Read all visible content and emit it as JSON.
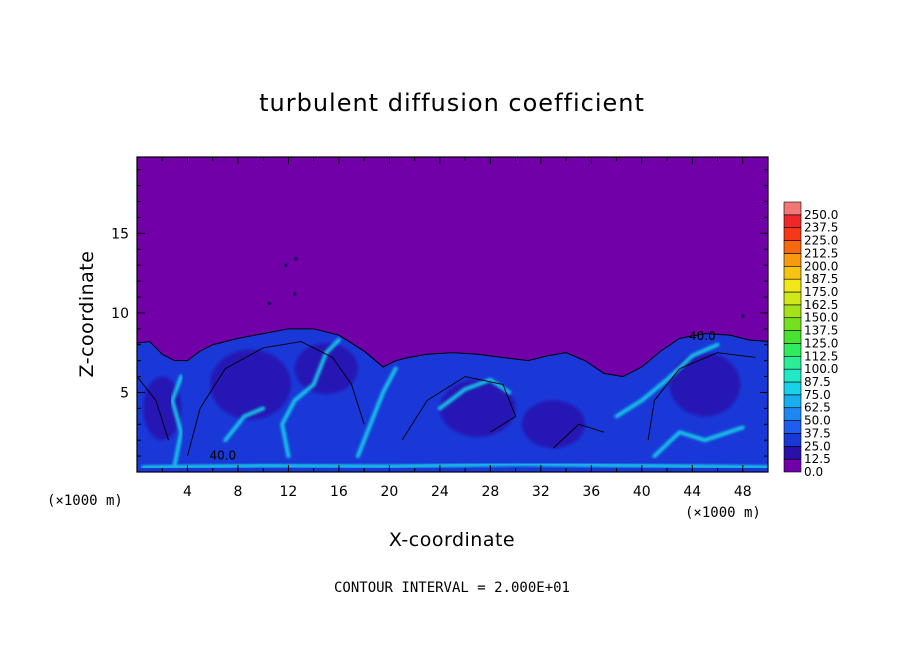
{
  "chart_data": {
    "type": "heatmap",
    "title": "turbulent diffusion coefficient",
    "xlabel": "X-coordinate",
    "ylabel": "Z-coordinate",
    "x_unit_left": "(×1000 m)",
    "x_unit_right": "(×1000 m)",
    "xlim": [
      0,
      50
    ],
    "ylim": [
      0,
      19.8
    ],
    "x_ticks": [
      4,
      8,
      12,
      16,
      20,
      24,
      28,
      32,
      36,
      40,
      44,
      48
    ],
    "y_ticks": [
      5,
      10,
      15
    ],
    "colorbar_levels": [
      "0.0",
      "12.5",
      "25.0",
      "37.5",
      "50.0",
      "62.5",
      "75.0",
      "87.5",
      "100.0",
      "112.5",
      "125.0",
      "137.5",
      "150.0",
      "162.5",
      "175.0",
      "187.5",
      "200.0",
      "212.5",
      "225.0",
      "237.5",
      "250.0"
    ],
    "colorbar_colors": [
      "#7200a8",
      "#2a10a8",
      "#1a38d8",
      "#1f5cf0",
      "#1e86f2",
      "#18aef0",
      "#18d2e8",
      "#22e8c8",
      "#28ee98",
      "#30ea60",
      "#48e230",
      "#74e020",
      "#a6e21c",
      "#d0e81a",
      "#f0e818",
      "#f8c414",
      "#f89a10",
      "#f86810",
      "#f43818",
      "#ee2828",
      "#f27878"
    ],
    "contour_labels": [
      {
        "text": "40.0",
        "x": 6.8,
        "z": 0.8
      },
      {
        "text": "40.0",
        "x": 44.8,
        "z": 8.3
      }
    ],
    "background_value": "0.0",
    "grid": false
  },
  "footer": {
    "contour_interval": "CONTOUR INTERVAL = 2.000E+01"
  },
  "colors": {
    "background_field": "#7200a8",
    "low": "#2a10a8",
    "mid": "#1a38d8",
    "cyan": "#18d2e8"
  }
}
